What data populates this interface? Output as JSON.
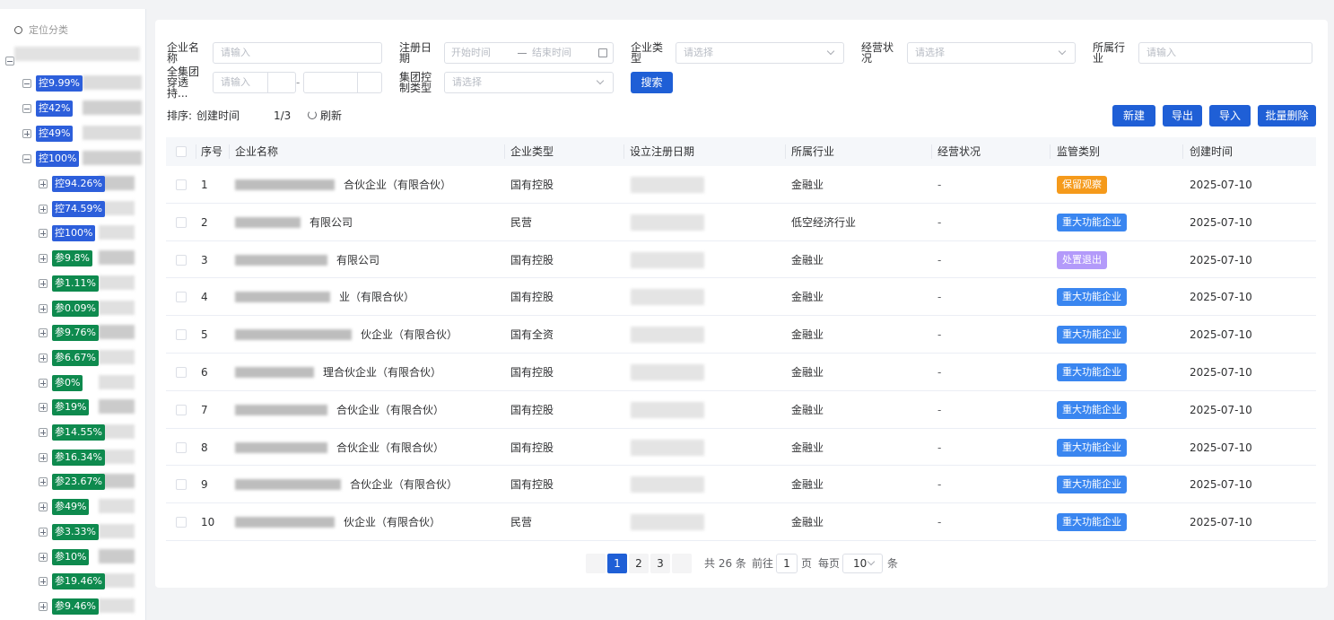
{
  "sidebar": {
    "title": "定位分类",
    "tree": [
      {
        "label": "控9.99%",
        "color": "#2d5fdb"
      },
      {
        "label": "控42%",
        "color": "#2d5fdb"
      },
      {
        "label": "控49%",
        "color": "#2d5fdb"
      },
      {
        "label": "控100%",
        "color": "#2d5fdb",
        "children": [
          {
            "label": "控94.26%",
            "color": "#2d5fdb"
          },
          {
            "label": "控74.59%",
            "color": "#2d5fdb"
          },
          {
            "label": "控100%",
            "color": "#2d5fdb"
          },
          {
            "label": "参9.8%",
            "color": "#0e8a4e"
          },
          {
            "label": "参1.11%",
            "color": "#0e8a4e"
          },
          {
            "label": "参0.09%",
            "color": "#0e8a4e"
          },
          {
            "label": "参9.76%",
            "color": "#0e8a4e"
          },
          {
            "label": "参6.67%",
            "color": "#0e8a4e"
          },
          {
            "label": "参0%",
            "color": "#0e8a4e"
          },
          {
            "label": "参19%",
            "color": "#0e8a4e"
          },
          {
            "label": "参14.55%",
            "color": "#0e8a4e"
          },
          {
            "label": "参16.34%",
            "color": "#0e8a4e"
          },
          {
            "label": "参23.67%",
            "color": "#0e8a4e"
          },
          {
            "label": "参49%",
            "color": "#0e8a4e"
          },
          {
            "label": "参3.33%",
            "color": "#0e8a4e"
          },
          {
            "label": "参10%",
            "color": "#0e8a4e"
          },
          {
            "label": "参19.46%",
            "color": "#0e8a4e"
          },
          {
            "label": "参9.46%",
            "color": "#0e8a4e"
          }
        ]
      }
    ]
  },
  "filters": {
    "company_name": {
      "label": "企业名称",
      "placeholder": "请输入"
    },
    "register_date": {
      "label": "注册日期",
      "start": "开始时间",
      "end": "结束时间"
    },
    "company_type": {
      "label": "企业类型",
      "placeholder": "请选择"
    },
    "operating_status": {
      "label": "经营状况",
      "placeholder": "请选择"
    },
    "industry": {
      "label": "所属行业",
      "placeholder": "请输入"
    },
    "holding": {
      "label": "全集团穿透持...",
      "placeholder": "请输入",
      "separator": "-"
    },
    "control_type": {
      "label": "集团控制类型",
      "placeholder": "请选择"
    },
    "search": "搜索"
  },
  "toolbar": {
    "sort_label": "排序:",
    "sort_field": "创建时间",
    "page_indicator": "1/3",
    "refresh": "刷新",
    "buttons": [
      "新建",
      "导出",
      "导入",
      "批量删除"
    ]
  },
  "table": {
    "columns": [
      "序号",
      "企业名称",
      "企业类型",
      "设立注册日期",
      "所属行业",
      "经营状况",
      "监管类别",
      "创建时间"
    ],
    "rows": [
      {
        "index": 1,
        "name": "合伙企业（有限合伙）",
        "type": "国有控股",
        "industry": "金融业",
        "status": "-",
        "category": {
          "text": "保留观察",
          "color": "#f59a1b"
        },
        "created": "2025-07-10"
      },
      {
        "index": 2,
        "name": "有限公司",
        "type": "民营",
        "industry": "低空经济行业",
        "status": "-",
        "category": {
          "text": "重大功能企业",
          "color": "#3a86f0"
        },
        "created": "2025-07-10"
      },
      {
        "index": 3,
        "name": "有限公司",
        "type": "国有控股",
        "industry": "金融业",
        "status": "-",
        "category": {
          "text": "处置退出",
          "color": "#b39afa"
        },
        "created": "2025-07-10"
      },
      {
        "index": 4,
        "name": "业（有限合伙）",
        "type": "国有控股",
        "industry": "金融业",
        "status": "-",
        "category": {
          "text": "重大功能企业",
          "color": "#3a86f0"
        },
        "created": "2025-07-10"
      },
      {
        "index": 5,
        "name": "伙企业（有限合伙）",
        "type": "国有全资",
        "industry": "金融业",
        "status": "-",
        "category": {
          "text": "重大功能企业",
          "color": "#3a86f0"
        },
        "created": "2025-07-10"
      },
      {
        "index": 6,
        "name": "理合伙企业（有限合伙）",
        "type": "国有控股",
        "industry": "金融业",
        "status": "-",
        "category": {
          "text": "重大功能企业",
          "color": "#3a86f0"
        },
        "created": "2025-07-10"
      },
      {
        "index": 7,
        "name": "合伙企业（有限合伙）",
        "type": "国有控股",
        "industry": "金融业",
        "status": "-",
        "category": {
          "text": "重大功能企业",
          "color": "#3a86f0"
        },
        "created": "2025-07-10"
      },
      {
        "index": 8,
        "name": "合伙企业（有限合伙）",
        "type": "国有控股",
        "industry": "金融业",
        "status": "-",
        "category": {
          "text": "重大功能企业",
          "color": "#3a86f0"
        },
        "created": "2025-07-10"
      },
      {
        "index": 9,
        "name": "合伙企业（有限合伙）",
        "type": "国有控股",
        "industry": "金融业",
        "status": "-",
        "category": {
          "text": "重大功能企业",
          "color": "#3a86f0"
        },
        "created": "2025-07-10"
      },
      {
        "index": 10,
        "name": "伙企业（有限合伙）",
        "type": "民营",
        "industry": "金融业",
        "status": "-",
        "category": {
          "text": "重大功能企业",
          "color": "#3a86f0"
        },
        "created": "2025-07-10"
      }
    ]
  },
  "pagination": {
    "pages": [
      1,
      2,
      3
    ],
    "current": 1,
    "total": "共 26 条",
    "goto_label": "前往",
    "goto_value": "1",
    "page_unit": "页",
    "size_label": "每页",
    "size": "10",
    "size_unit": "条"
  }
}
